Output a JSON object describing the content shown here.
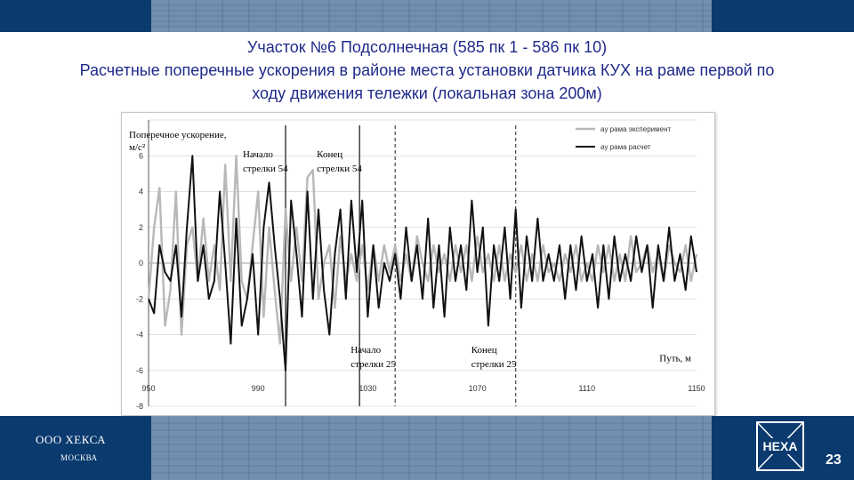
{
  "header": {
    "title_line1": "Участок №6 Подсолнечная (585 пк 1 - 586 пк 10)",
    "title_line2": "Расчетные поперечные ускорения в районе места установки датчика КУХ на раме первой по",
    "title_line3": "ходу движения тележки (локальная зона 200м)"
  },
  "footer": {
    "company": "ООО ХЕКСА",
    "city": "МОСКВА",
    "logo_text": "HEXA",
    "page_number": "23"
  },
  "chart_data": {
    "type": "line",
    "ylabel": "Поперечное ускорение,",
    "ylabel_unit": "м/с²",
    "xlabel": "Путь, м",
    "xlim": [
      950,
      1150
    ],
    "ylim": [
      -8,
      8
    ],
    "x_ticks": [
      "950",
      "990",
      "1030",
      "1070",
      "1110",
      "1150"
    ],
    "y_ticks": [
      "6",
      "4",
      "2",
      "0",
      "-2",
      "-4",
      "-6",
      "-8"
    ],
    "grid": true,
    "legend_position": "top-right",
    "series_colors": {
      "experiment": "#b8b8b8",
      "calc": "#111111"
    },
    "series": [
      {
        "name": "ay рама эксперимент",
        "x": [
          950,
          952,
          954,
          956,
          958,
          960,
          962,
          964,
          966,
          968,
          970,
          972,
          974,
          976,
          978,
          980,
          982,
          984,
          986,
          988,
          990,
          992,
          994,
          996,
          998,
          1000,
          1002,
          1004,
          1006,
          1008,
          1010,
          1012,
          1014,
          1016,
          1018,
          1020,
          1022,
          1024,
          1026,
          1028,
          1030,
          1032,
          1034,
          1036,
          1038,
          1040,
          1042,
          1044,
          1046,
          1048,
          1050,
          1052,
          1054,
          1056,
          1058,
          1060,
          1062,
          1064,
          1066,
          1068,
          1070,
          1072,
          1074,
          1076,
          1078,
          1080,
          1082,
          1084,
          1086,
          1088,
          1090,
          1092,
          1094,
          1096,
          1098,
          1100,
          1102,
          1104,
          1106,
          1108,
          1110,
          1112,
          1114,
          1116,
          1118,
          1120,
          1122,
          1124,
          1126,
          1128,
          1130,
          1132,
          1134,
          1136,
          1138,
          1140,
          1142,
          1144,
          1146,
          1148,
          1150
        ],
        "values": [
          -2,
          2,
          4.2,
          -3.5,
          -1.5,
          4,
          -4,
          1,
          2,
          -1,
          2.5,
          -1,
          1,
          -1.5,
          5.5,
          -1,
          6,
          -1,
          -2,
          1,
          4,
          -3,
          2,
          -1.5,
          -4.5,
          3,
          -1,
          2,
          -1,
          4.8,
          5.2,
          -2,
          0,
          1,
          -2.5,
          1.5,
          -1,
          0.5,
          -1,
          1,
          -1.5,
          1,
          -1,
          1,
          -0.5,
          1,
          -1,
          0.5,
          -1,
          1.5,
          0,
          -1,
          1,
          -0.5,
          0.5,
          -1,
          1,
          -0.5,
          1,
          -1,
          1.5,
          -0.5,
          0.5,
          -1,
          1,
          -1,
          0.5,
          -0.5,
          1,
          -1,
          0.5,
          -1,
          1,
          -0.5,
          0,
          -1,
          0.5,
          -0.5,
          1,
          -1,
          0,
          -1,
          1,
          -0.5,
          1,
          -1,
          0.5,
          -1,
          1.5,
          -0.5,
          0,
          1,
          -0.5,
          0.5,
          -1,
          1,
          0,
          -0.5,
          1,
          -1,
          0.5
        ]
      },
      {
        "name": "ay рама расчет",
        "x": [
          950,
          952,
          954,
          956,
          958,
          960,
          962,
          964,
          966,
          968,
          970,
          972,
          974,
          976,
          978,
          980,
          982,
          984,
          986,
          988,
          990,
          992,
          994,
          996,
          998,
          1000,
          1002,
          1004,
          1006,
          1008,
          1010,
          1012,
          1014,
          1016,
          1018,
          1020,
          1022,
          1024,
          1026,
          1028,
          1030,
          1032,
          1034,
          1036,
          1038,
          1040,
          1042,
          1044,
          1046,
          1048,
          1050,
          1052,
          1054,
          1056,
          1058,
          1060,
          1062,
          1064,
          1066,
          1068,
          1070,
          1072,
          1074,
          1076,
          1078,
          1080,
          1082,
          1084,
          1086,
          1088,
          1090,
          1092,
          1094,
          1096,
          1098,
          1100,
          1102,
          1104,
          1106,
          1108,
          1110,
          1112,
          1114,
          1116,
          1118,
          1120,
          1122,
          1124,
          1126,
          1128,
          1130,
          1132,
          1134,
          1136,
          1138,
          1140,
          1142,
          1144,
          1146,
          1148,
          1150
        ],
        "values": [
          -2,
          -2.8,
          1,
          -0.5,
          -1,
          1,
          -3,
          2,
          6,
          -1,
          1,
          -2,
          -1,
          4,
          0,
          -4.5,
          2.5,
          -3.5,
          -2,
          0.5,
          -4,
          2,
          4.5,
          1,
          -2,
          -6,
          3.5,
          0.5,
          -3,
          4,
          -2,
          3,
          -1.5,
          -4,
          0.5,
          3,
          -2,
          3.5,
          -0.5,
          3.5,
          -3,
          1,
          -2.5,
          0,
          -1,
          0.5,
          -2,
          2,
          -1,
          1,
          -2,
          2.5,
          -2.5,
          1,
          -3,
          2,
          -1,
          1,
          -1.5,
          3.5,
          -0.5,
          2,
          -3.5,
          1,
          -1,
          2,
          -2,
          3,
          -2.5,
          1.5,
          -1,
          2.5,
          -1,
          0.5,
          -1,
          1,
          -2,
          1,
          -1.5,
          1.5,
          -1,
          0.5,
          -2.5,
          1,
          -2,
          1.5,
          -1,
          0.5,
          -1,
          1.5,
          -0.5,
          1,
          -2.5,
          1,
          -1,
          2,
          -1,
          0.5,
          -1.5,
          1.5,
          -0.5
        ]
      }
    ],
    "markers": [
      {
        "x": 1000,
        "style": "solid",
        "label1": "Начало",
        "label2": "стрелки 54"
      },
      {
        "x": 1027,
        "style": "solid",
        "label1": "Конец",
        "label2": "стрелки 54"
      },
      {
        "x": 1040,
        "style": "dashed",
        "label1": "Начало",
        "label2": "стрелки 25"
      },
      {
        "x": 1084,
        "style": "dashed",
        "label1": "Конец",
        "label2": "стрелки 25"
      }
    ]
  }
}
